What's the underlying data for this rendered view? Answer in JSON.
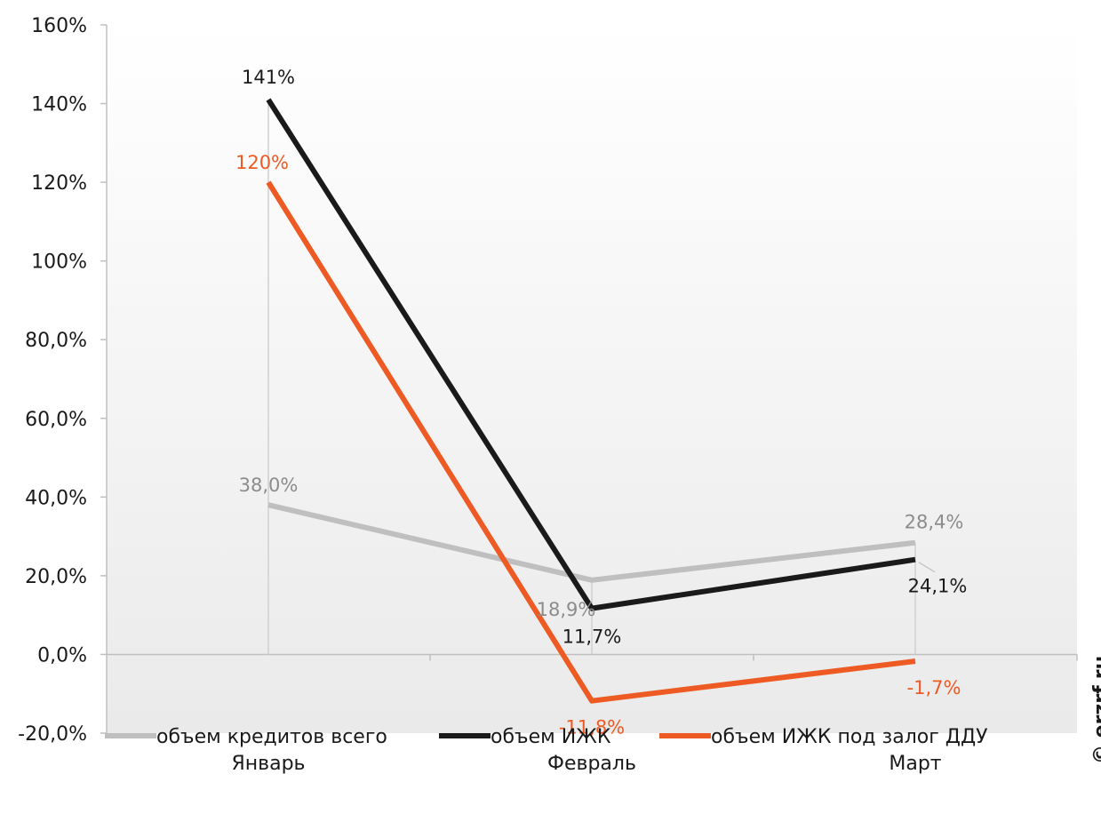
{
  "chart_data": {
    "type": "line",
    "categories": [
      "Январь",
      "Февраль",
      "Март"
    ],
    "yticks": [
      "160%",
      "140%",
      "120%",
      "100%",
      "80,0%",
      "60,0%",
      "40,0%",
      "20,0%",
      "0,0%",
      "-20,0%"
    ],
    "ylim": [
      -20,
      160
    ],
    "grid": false,
    "legend_position": "bottom",
    "series": [
      {
        "name": "объем кредитов всего",
        "values": [
          38.0,
          18.9,
          28.4
        ],
        "labels": [
          "38,0%",
          "18,9%",
          "28,4%"
        ],
        "color": "#bfbfbf"
      },
      {
        "name": "объем ИЖК",
        "values": [
          141,
          11.7,
          24.1
        ],
        "labels": [
          "141%",
          "11,7%",
          "24,1%"
        ],
        "color": "#1a1a1a"
      },
      {
        "name": "объем ИЖК под залог ДДУ",
        "values": [
          120,
          -11.8,
          -1.7
        ],
        "labels": [
          "120%",
          "-11,8%",
          "-1,7%"
        ],
        "color": "#ee5a24"
      }
    ]
  },
  "watermark": "© erzrf.ru"
}
